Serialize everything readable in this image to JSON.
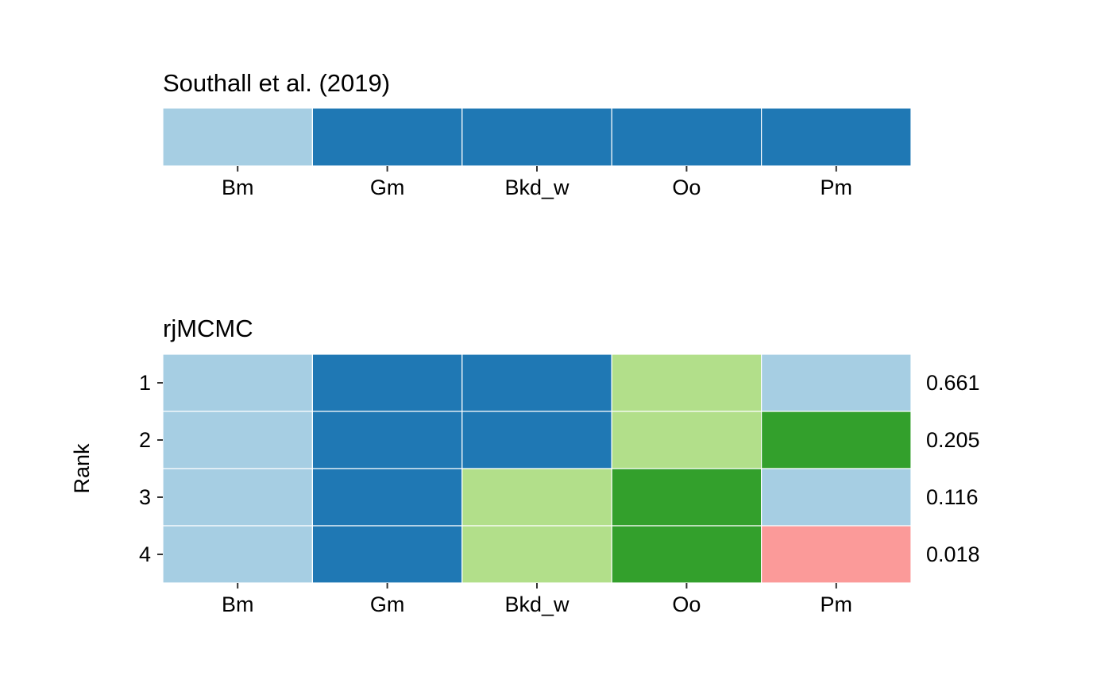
{
  "chart_data": [
    {
      "type": "heatmap",
      "title": "Southall et al. (2019)",
      "categories": [
        "Bm",
        "Gm",
        "Bkd_w",
        "Oo",
        "Pm"
      ],
      "rows": [
        {
          "label": "",
          "groups": [
            1,
            2,
            2,
            2,
            2
          ],
          "value": ""
        }
      ],
      "ylabel": ""
    },
    {
      "type": "heatmap",
      "title": "rjMCMC",
      "categories": [
        "Bm",
        "Gm",
        "Bkd_w",
        "Oo",
        "Pm"
      ],
      "rows": [
        {
          "label": "1",
          "groups": [
            1,
            2,
            2,
            3,
            1
          ],
          "value": "0.661"
        },
        {
          "label": "2",
          "groups": [
            1,
            2,
            2,
            3,
            4
          ],
          "value": "0.205"
        },
        {
          "label": "3",
          "groups": [
            1,
            2,
            3,
            4,
            1
          ],
          "value": "0.116"
        },
        {
          "label": "4",
          "groups": [
            1,
            2,
            3,
            4,
            5
          ],
          "value": "0.018"
        }
      ],
      "ylabel": "Rank"
    }
  ],
  "palette": {
    "1": "#A6CEE3",
    "2": "#1F78B4",
    "3": "#B2DF8A",
    "4": "#33A02C",
    "5": "#FB9A99"
  }
}
